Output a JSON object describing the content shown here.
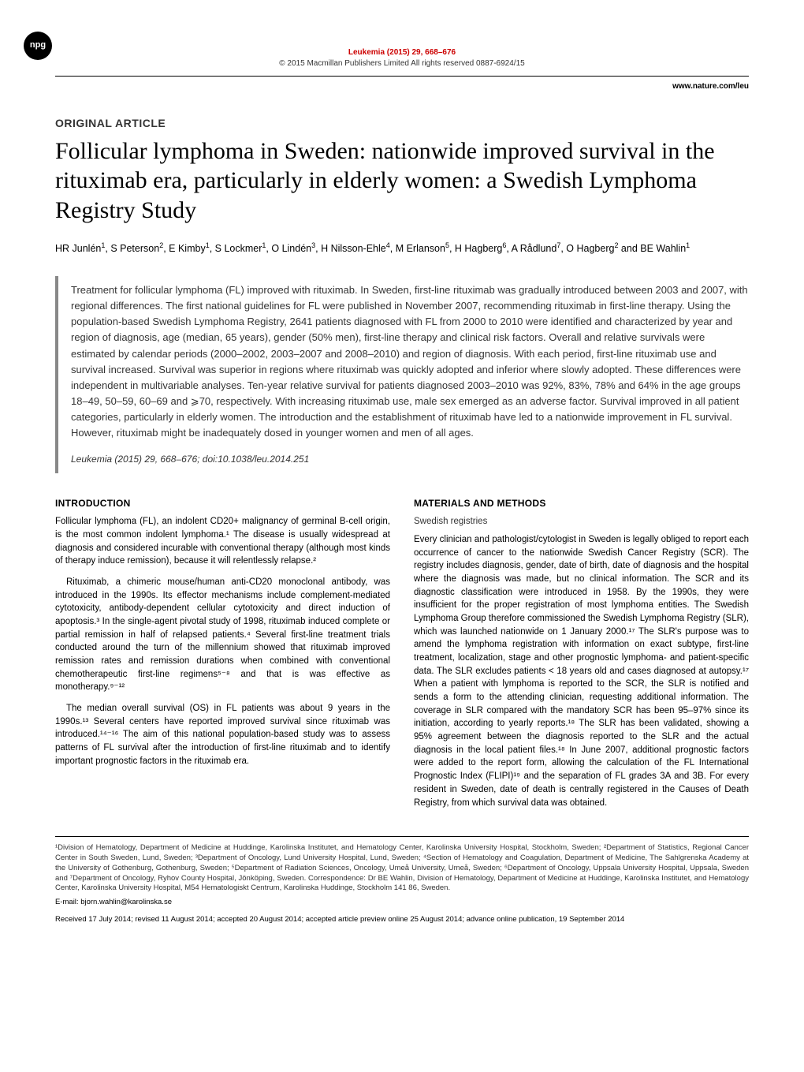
{
  "header": {
    "journal_line": "Leukemia (2015) 29, 668–676",
    "copyright_line": "© 2015 Macmillan Publishers Limited   All rights reserved 0887-6924/15",
    "url": "www.nature.com/leu",
    "npg_label": "npg"
  },
  "article": {
    "type": "ORIGINAL ARTICLE",
    "title": "Follicular lymphoma in Sweden: nationwide improved survival in the rituximab era, particularly in elderly women: a Swedish Lymphoma Registry Study",
    "authors_html": "HR Junlén<sup>1</sup>, S Peterson<sup>2</sup>, E Kimby<sup>1</sup>, S Lockmer<sup>1</sup>, O Lindén<sup>3</sup>, H Nilsson-Ehle<sup>4</sup>, M Erlanson<sup>5</sup>, H Hagberg<sup>6</sup>, A Rådlund<sup>7</sup>, O Hagberg<sup>2</sup> and BE Wahlin<sup>1</sup>"
  },
  "abstract": {
    "text": "Treatment for follicular lymphoma (FL) improved with rituximab. In Sweden, first-line rituximab was gradually introduced between 2003 and 2007, with regional differences. The first national guidelines for FL were published in November 2007, recommending rituximab in first-line therapy. Using the population-based Swedish Lymphoma Registry, 2641 patients diagnosed with FL from 2000 to 2010 were identified and characterized by year and region of diagnosis, age (median, 65 years), gender (50% men), first-line therapy and clinical risk factors. Overall and relative survivals were estimated by calendar periods (2000–2002, 2003–2007 and 2008–2010) and region of diagnosis. With each period, first-line rituximab use and survival increased. Survival was superior in regions where rituximab was quickly adopted and inferior where slowly adopted. These differences were independent in multivariable analyses. Ten-year relative survival for patients diagnosed 2003–2010 was 92%, 83%, 78% and 64% in the age groups 18–49, 50–59, 60–69 and ⩾70, respectively. With increasing rituximab use, male sex emerged as an adverse factor. Survival improved in all patient categories, particularly in elderly women. The introduction and the establishment of rituximab have led to a nationwide improvement in FL survival. However, rituximab might be inadequately dosed in younger women and men of all ages.",
    "citation": "Leukemia (2015) 29, 668–676; doi:10.1038/leu.2014.251"
  },
  "intro": {
    "heading": "INTRODUCTION",
    "p1": "Follicular lymphoma (FL), an indolent CD20+ malignancy of germinal B-cell origin, is the most common indolent lymphoma.¹ The disease is usually widespread at diagnosis and considered incurable with conventional therapy (although most kinds of therapy induce remission), because it will relentlessly relapse.²",
    "p2": "Rituximab, a chimeric mouse/human anti-CD20 monoclonal antibody, was introduced in the 1990s. Its effector mechanisms include complement-mediated cytotoxicity, antibody-dependent cellular cytotoxicity and direct induction of apoptosis.³ In the single-agent pivotal study of 1998, rituximab induced complete or partial remission in half of relapsed patients.⁴ Several first-line treatment trials conducted around the turn of the millennium showed that rituximab improved remission rates and remission durations when combined with conventional chemotherapeutic first-line regimens⁵⁻⁸ and that is was effective as monotherapy.⁹⁻¹²",
    "p3": "The median overall survival (OS) in FL patients was about 9 years in the 1990s.¹³ Several centers have reported improved survival since rituximab was introduced.¹⁴⁻¹⁶ The aim of this national population-based study was to assess patterns of FL survival after the introduction of first-line rituximab and to identify important prognostic factors in the rituximab era."
  },
  "methods": {
    "heading": "MATERIALS AND METHODS",
    "subheading": "Swedish registries",
    "p1": "Every clinician and pathologist/cytologist in Sweden is legally obliged to report each occurrence of cancer to the nationwide Swedish Cancer Registry (SCR). The registry includes diagnosis, gender, date of birth, date of diagnosis and the hospital where the diagnosis was made, but no clinical information. The SCR and its diagnostic classification were introduced in 1958. By the 1990s, they were insufficient for the proper registration of most lymphoma entities. The Swedish Lymphoma Group therefore commissioned the Swedish Lymphoma Registry (SLR), which was launched nationwide on 1 January 2000.¹⁷ The SLR's purpose was to amend the lymphoma registration with information on exact subtype, first-line treatment, localization, stage and other prognostic lymphoma- and patient-specific data. The SLR excludes patients < 18 years old and cases diagnosed at autopsy.¹⁷ When a patient with lymphoma is reported to the SCR, the SLR is notified and sends a form to the attending clinician, requesting additional information. The coverage in SLR compared with the mandatory SCR has been 95–97% since its initiation, according to yearly reports.¹⁸ The SLR has been validated, showing a 95% agreement between the diagnosis reported to the SLR and the actual diagnosis in the local patient files.¹⁸ In June 2007, additional prognostic factors were added to the report form, allowing the calculation of the FL International Prognostic Index (FLIPI)¹⁹ and the separation of FL grades 3A and 3B. For every resident in Sweden, date of death is centrally registered in the Causes of Death Registry, from which survival data was obtained."
  },
  "footer": {
    "affiliations": "¹Division of Hematology, Department of Medicine at Huddinge, Karolinska Institutet, and Hematology Center, Karolinska University Hospital, Stockholm, Sweden; ²Department of Statistics, Regional Cancer Center in South Sweden, Lund, Sweden; ³Department of Oncology, Lund University Hospital, Lund, Sweden; ⁴Section of Hematology and Coagulation, Department of Medicine, The Sahlgrenska Academy at the University of Gothenburg, Gothenburg, Sweden; ⁵Department of Radiation Sciences, Oncology, Umeå University, Umeå, Sweden; ⁶Department of Oncology, Uppsala University Hospital, Uppsala, Sweden and ⁷Department of Oncology, Ryhov County Hospital, Jönköping, Sweden. Correspondence: Dr BE Wahlin, Division of Hematology, Department of Medicine at Huddinge, Karolinska Institutet, and Hematology Center, Karolinska University Hospital, M54 Hematologiskt Centrum, Karolinska Huddinge, Stockholm 141 86, Sweden.",
    "email": "E-mail: bjorn.wahlin@karolinska.se",
    "received": "Received 17 July 2014; revised 11 August 2014; accepted 20 August 2014; accepted article preview online 25 August 2014; advance online publication, 19 September 2014"
  }
}
